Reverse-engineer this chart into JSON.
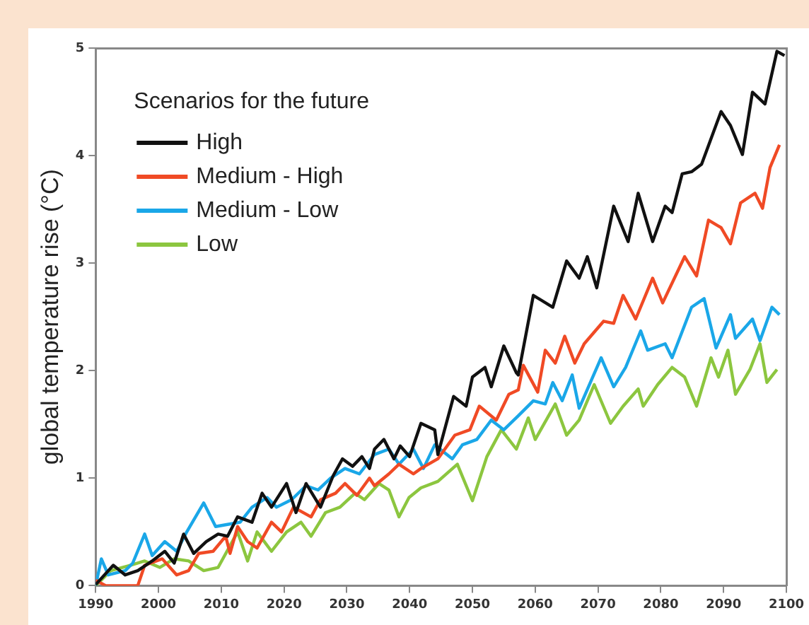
{
  "chart_data": {
    "type": "line",
    "ylabel": "global temperature rise (°C)",
    "legend_title": "Scenarios for the future",
    "legend": "top left",
    "grid": false,
    "marker": "none",
    "line_style": "solid",
    "xlim": [
      1990,
      2100
    ],
    "xticks": [
      1990,
      2000,
      2010,
      2020,
      2030,
      2040,
      2050,
      2060,
      2070,
      2080,
      2090,
      2100
    ],
    "ylim": [
      0,
      5
    ],
    "yticks": [
      0,
      1,
      2,
      3,
      4,
      5
    ],
    "series": [
      {
        "name": "High",
        "color": "#111111",
        "x": [
          1990,
          1992.8,
          1994.7,
          1996.7,
          1999,
          2001,
          2002.5,
          2004,
          2005.6,
          2007.6,
          2009.5,
          2011,
          2012.6,
          2014.9,
          2016.5,
          2018,
          2020.4,
          2021.9,
          2023.5,
          2025.8,
          2027.8,
          2029.3,
          2030.9,
          2032.4,
          2033.6,
          2034.4,
          2035.9,
          2037.5,
          2038.5,
          2040,
          2041.8,
          2044,
          2044.5,
          2047,
          2049,
          2050,
          2052,
          2053,
          2055,
          2057,
          2057.3,
          2059.7,
          2062.8,
          2065,
          2067,
          2068.3,
          2069.8,
          2072.5,
          2074.8,
          2076.4,
          2078.7,
          2080.7,
          2081.8,
          2083.4,
          2084.9,
          2086.5,
          2089.6,
          2091.1,
          2093,
          2094.6,
          2096.6,
          2098.5,
          2099.7
        ],
        "values": [
          0.01,
          0.19,
          0.1,
          0.14,
          0.23,
          0.32,
          0.21,
          0.48,
          0.3,
          0.41,
          0.48,
          0.46,
          0.64,
          0.59,
          0.86,
          0.73,
          0.95,
          0.68,
          0.95,
          0.73,
          1.02,
          1.18,
          1.11,
          1.2,
          1.09,
          1.27,
          1.36,
          1.18,
          1.3,
          1.2,
          1.51,
          1.45,
          1.22,
          1.76,
          1.67,
          1.94,
          2.03,
          1.85,
          2.23,
          1.98,
          1.96,
          2.7,
          2.59,
          3.02,
          2.86,
          3.06,
          2.77,
          3.53,
          3.2,
          3.65,
          3.2,
          3.53,
          3.47,
          3.83,
          3.85,
          3.92,
          4.41,
          4.28,
          4.01,
          4.59,
          4.48,
          4.97,
          4.93
        ]
      },
      {
        "name": "Medium - High",
        "color": "#f04a25",
        "x": [
          1990,
          1991.6,
          1996.7,
          1997.8,
          2000.6,
          2002.9,
          2004.8,
          2006.4,
          2008.7,
          2010.7,
          2011.4,
          2012.6,
          2014.2,
          2015.7,
          2018,
          2019.6,
          2021.5,
          2024.3,
          2025.8,
          2028.2,
          2029.7,
          2031.6,
          2033.6,
          2034.4,
          2036.7,
          2038.3,
          2040.6,
          2041.8,
          2044.5,
          2047.2,
          2049.6,
          2051.1,
          2053.8,
          2055.8,
          2057.3,
          2058.1,
          2060.4,
          2061.6,
          2063.2,
          2064.7,
          2066.3,
          2067.8,
          2070.9,
          2072.5,
          2074,
          2076,
          2078.7,
          2080.3,
          2083.8,
          2085.7,
          2087.6,
          2089.6,
          2091.1,
          2092.7,
          2095,
          2096.2,
          2097.4,
          2098.9
        ],
        "values": [
          0.05,
          0,
          0,
          0.19,
          0.25,
          0.1,
          0.14,
          0.3,
          0.32,
          0.46,
          0.3,
          0.55,
          0.41,
          0.35,
          0.59,
          0.5,
          0.73,
          0.64,
          0.8,
          0.86,
          0.95,
          0.84,
          1,
          0.93,
          1.04,
          1.13,
          1.04,
          1.09,
          1.18,
          1.4,
          1.45,
          1.67,
          1.54,
          1.78,
          1.82,
          2.05,
          1.8,
          2.19,
          2.07,
          2.32,
          2.07,
          2.25,
          2.46,
          2.44,
          2.7,
          2.48,
          2.86,
          2.63,
          3.06,
          2.88,
          3.4,
          3.33,
          3.18,
          3.56,
          3.65,
          3.51,
          3.89,
          4.1
        ]
      },
      {
        "name": "Medium - Low",
        "color": "#1aa7e8",
        "x": [
          1990,
          1990.9,
          1992,
          1994.7,
          1995.9,
          1997.8,
          1999,
          2001,
          2002.9,
          2004.5,
          2007.2,
          2009.1,
          2011,
          2013,
          2014.9,
          2017.3,
          2018.8,
          2021.2,
          2023.5,
          2025.4,
          2027.4,
          2029.7,
          2032,
          2034.4,
          2036.7,
          2038.3,
          2040.6,
          2042.2,
          2044,
          2046.8,
          2048.4,
          2050.7,
          2053,
          2055,
          2057.3,
          2059.7,
          2061.6,
          2062.8,
          2064.3,
          2065.9,
          2067,
          2070.5,
          2072.5,
          2074.4,
          2076.8,
          2077.9,
          2080.7,
          2081.8,
          2084.9,
          2086.9,
          2088.8,
          2091.1,
          2091.9,
          2094.6,
          2095.8,
          2097.7,
          2098.9
        ],
        "values": [
          0,
          0.25,
          0.1,
          0.14,
          0.21,
          0.48,
          0.28,
          0.41,
          0.32,
          0.5,
          0.77,
          0.55,
          0.57,
          0.59,
          0.73,
          0.82,
          0.73,
          0.8,
          0.93,
          0.89,
          1,
          1.09,
          1.04,
          1.22,
          1.27,
          1.13,
          1.27,
          1.09,
          1.31,
          1.18,
          1.31,
          1.36,
          1.54,
          1.45,
          1.58,
          1.72,
          1.69,
          1.89,
          1.72,
          1.96,
          1.65,
          2.12,
          1.85,
          2.03,
          2.37,
          2.19,
          2.25,
          2.12,
          2.59,
          2.67,
          2.21,
          2.52,
          2.3,
          2.48,
          2.28,
          2.59,
          2.52
        ]
      },
      {
        "name": "Low",
        "color": "#8cc63f",
        "x": [
          1990,
          1992.4,
          1995.5,
          1997.8,
          2000.2,
          2002.5,
          2004.8,
          2007.2,
          2009.5,
          2012.6,
          2014.2,
          2015.7,
          2018,
          2020.4,
          2022.7,
          2024.3,
          2026.6,
          2028.9,
          2031.3,
          2032.8,
          2035.1,
          2036.7,
          2038.3,
          2039.9,
          2041.8,
          2044.5,
          2047.6,
          2050,
          2052.3,
          2054.6,
          2057,
          2058.9,
          2060,
          2063.2,
          2065,
          2067,
          2069.4,
          2072,
          2074,
          2076.4,
          2077.2,
          2079.5,
          2081.8,
          2083.8,
          2085.7,
          2088,
          2089.2,
          2090.7,
          2091.9,
          2094.2,
          2095.8,
          2096.9,
          2098.5
        ],
        "values": [
          0,
          0.14,
          0.19,
          0.23,
          0.17,
          0.25,
          0.23,
          0.14,
          0.17,
          0.5,
          0.23,
          0.5,
          0.32,
          0.5,
          0.59,
          0.46,
          0.68,
          0.73,
          0.86,
          0.8,
          0.95,
          0.89,
          0.64,
          0.82,
          0.91,
          0.97,
          1.13,
          0.79,
          1.2,
          1.45,
          1.27,
          1.56,
          1.36,
          1.69,
          1.4,
          1.54,
          1.87,
          1.51,
          1.67,
          1.83,
          1.67,
          1.87,
          2.03,
          1.94,
          1.67,
          2.12,
          1.94,
          2.19,
          1.78,
          2.01,
          2.25,
          1.89,
          2.01
        ]
      }
    ]
  }
}
